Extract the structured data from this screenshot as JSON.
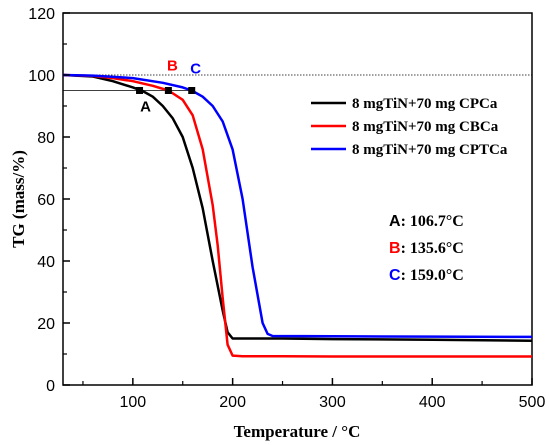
{
  "chart_data": {
    "type": "line",
    "xlabel": "Temperature / °C",
    "ylabel": "TG (mass/%)",
    "xlim": [
      30,
      500
    ],
    "ylim": [
      0,
      120
    ],
    "xticks": [
      100,
      200,
      300,
      400,
      500
    ],
    "yticks": [
      0,
      20,
      40,
      60,
      80,
      100,
      120
    ],
    "grid": false,
    "legend_position": "upper-right",
    "reference_lines": [
      {
        "y": 100,
        "style": "dotted"
      },
      {
        "y": 95,
        "style": "solid-thin"
      }
    ],
    "series": [
      {
        "name": "8 mgTiN+70 mg CPCa",
        "color": "#000000",
        "x": [
          30,
          60,
          80,
          100,
          110,
          120,
          130,
          140,
          150,
          160,
          170,
          180,
          190,
          195,
          200,
          210,
          250,
          300,
          400,
          500
        ],
        "y": [
          100,
          99.5,
          98,
          96,
          94.8,
          93,
          90,
          86,
          80,
          70,
          57,
          40,
          24,
          17,
          15,
          15,
          15,
          14.8,
          14.6,
          14.3
        ]
      },
      {
        "name": "8 mgTiN+70 mg CBCa",
        "color": "#ff0000",
        "x": [
          30,
          60,
          80,
          100,
          120,
          135.6,
          150,
          160,
          170,
          180,
          185,
          190,
          195,
          200,
          210,
          250,
          300,
          400,
          500
        ],
        "y": [
          100,
          99.7,
          99,
          98,
          96.5,
          95,
          92,
          87,
          76,
          58,
          45,
          28,
          13,
          9.5,
          9.3,
          9.3,
          9.2,
          9.2,
          9.2
        ]
      },
      {
        "name": "8 mgTiN+70 mg CPTCa",
        "color": "#0000ff",
        "x": [
          30,
          60,
          100,
          130,
          150,
          159,
          170,
          180,
          190,
          200,
          210,
          220,
          230,
          235,
          240,
          300,
          400,
          500
        ],
        "y": [
          100,
          99.8,
          99,
          97.5,
          96,
          95,
          93,
          90,
          85,
          76,
          60,
          38,
          20,
          16.5,
          15.8,
          15.7,
          15.6,
          15.5
        ]
      }
    ],
    "markers": [
      {
        "label": "A",
        "x": 106.7,
        "y": 95,
        "color": "#000000"
      },
      {
        "label": "B",
        "x": 135.6,
        "y": 95,
        "color": "#ff0000"
      },
      {
        "label": "C",
        "x": 159.0,
        "y": 95,
        "color": "#0000ff"
      }
    ],
    "annotations": [
      {
        "letter": "A",
        "colon": ":",
        "value": "106.7°C",
        "color": "#000000"
      },
      {
        "letter": "B",
        "colon": ":",
        "value": "135.6°C",
        "color": "#ff0000"
      },
      {
        "letter": "C",
        "colon": ":",
        "value": "159.0°C",
        "color": "#0000ff"
      }
    ]
  }
}
